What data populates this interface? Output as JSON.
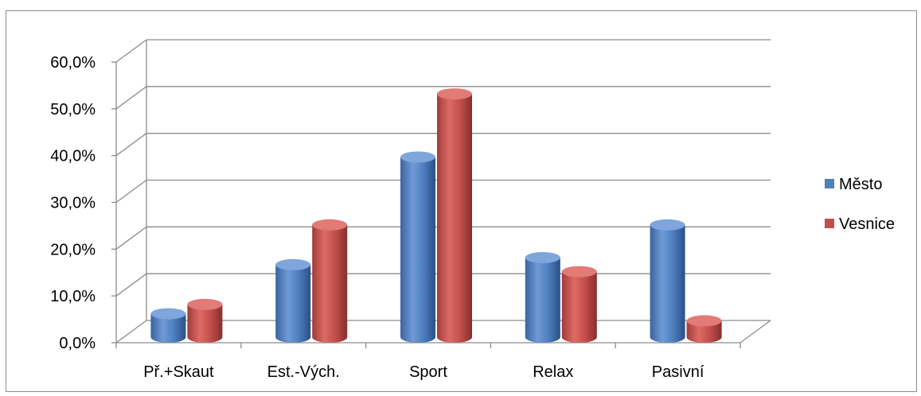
{
  "chart_data": {
    "type": "bar",
    "variant": "3d-cylinder",
    "categories": [
      "Př.+Skaut",
      "Est.-Vých.",
      "Sport",
      "Relax",
      "Pasivní"
    ],
    "series": [
      {
        "name": "Město",
        "color": "#4f81bd",
        "values": [
          5.0,
          15.5,
          38.5,
          17.0,
          24.0
        ]
      },
      {
        "name": "Vesnice",
        "color": "#c0504d",
        "values": [
          7.0,
          24.0,
          52.0,
          14.0,
          3.5
        ]
      }
    ],
    "y_ticks": [
      "0,0%",
      "10,0%",
      "20,0%",
      "30,0%",
      "40,0%",
      "50,0%",
      "60,0%"
    ],
    "ylim": [
      0,
      60
    ],
    "grid": true,
    "legend_position": "right"
  }
}
